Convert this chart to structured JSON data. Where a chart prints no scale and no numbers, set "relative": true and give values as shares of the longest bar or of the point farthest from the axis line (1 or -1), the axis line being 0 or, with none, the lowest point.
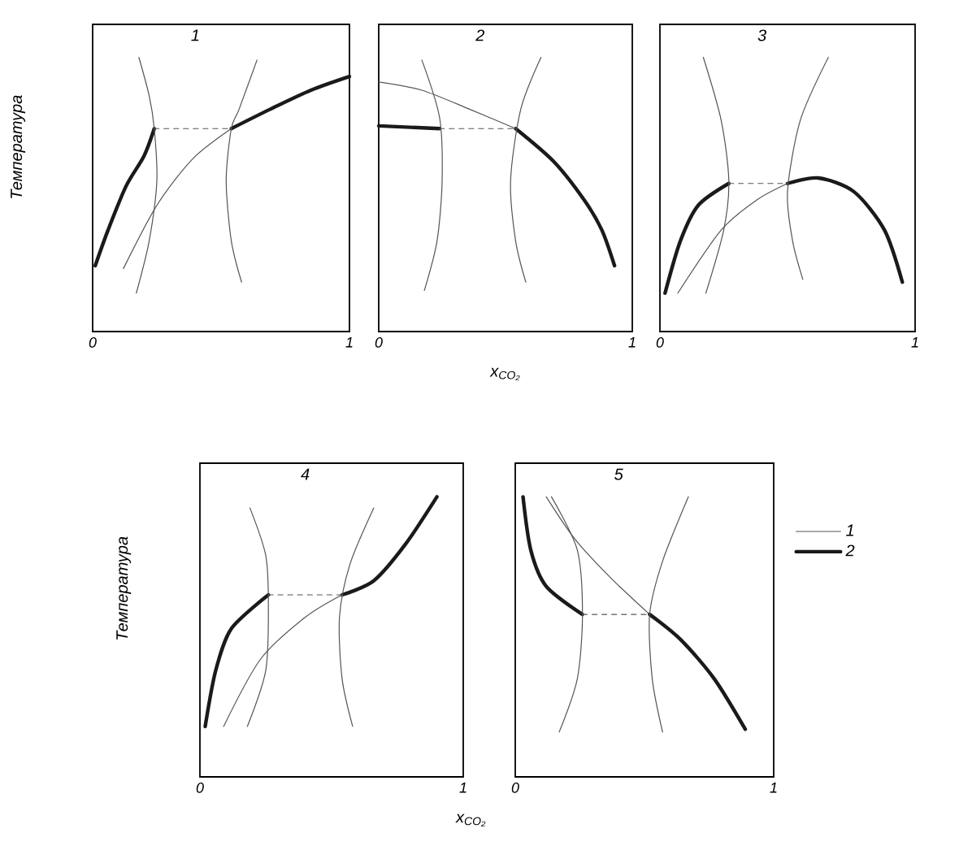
{
  "chart_data": [
    {
      "type": "line",
      "title": "1",
      "ylabel": "Температура",
      "relative": true,
      "xlim": [
        0,
        1
      ],
      "xticks": [
        0,
        1
      ],
      "marker": "none",
      "series": [
        {
          "color": "#1a1a1a",
          "x": [
            0.01,
            0.06,
            0.13,
            0.2,
            0.24
          ],
          "values": [
            0.24,
            0.37,
            0.53,
            0.64,
            0.74
          ]
        },
        {
          "color": "#1a1a1a",
          "x": [
            0.54,
            0.69,
            0.85,
            1.0
          ],
          "values": [
            0.74,
            0.81,
            0.88,
            0.93
          ]
        },
        {
          "color": "#555555",
          "x": [
            0.12,
            0.25,
            0.39,
            0.54
          ],
          "values": [
            0.23,
            0.46,
            0.63,
            0.74
          ]
        },
        {
          "color": "#555555",
          "line_style": "dashed",
          "x": [
            0.24,
            0.54
          ],
          "values": [
            0.74,
            0.74
          ]
        },
        {
          "color": "#555555",
          "x": [
            0.18,
            0.22,
            0.24,
            0.25,
            0.22,
            0.17
          ],
          "values": [
            1.0,
            0.86,
            0.74,
            0.55,
            0.33,
            0.14
          ]
        },
        {
          "color": "#555555",
          "x": [
            0.64,
            0.57,
            0.54,
            0.52,
            0.54,
            0.58
          ],
          "values": [
            0.99,
            0.81,
            0.74,
            0.55,
            0.33,
            0.18
          ]
        }
      ]
    },
    {
      "type": "line",
      "title": "2",
      "xlabel": "x$_{CO₂}$",
      "relative": true,
      "xlim": [
        0,
        1
      ],
      "xticks": [
        0,
        1
      ],
      "marker": "none",
      "series": [
        {
          "color": "#1a1a1a",
          "x": [
            0.0,
            0.24
          ],
          "values": [
            0.75,
            0.74
          ]
        },
        {
          "color": "#1a1a1a",
          "x": [
            0.54,
            0.69,
            0.81,
            0.88,
            0.93
          ],
          "values": [
            0.74,
            0.62,
            0.48,
            0.37,
            0.24
          ]
        },
        {
          "color": "#555555",
          "x": [
            0.0,
            0.17,
            0.36,
            0.54
          ],
          "values": [
            0.91,
            0.88,
            0.81,
            0.74
          ]
        },
        {
          "color": "#555555",
          "line_style": "dashed",
          "x": [
            0.24,
            0.54
          ],
          "values": [
            0.74,
            0.74
          ]
        },
        {
          "color": "#555555",
          "x": [
            0.17,
            0.24,
            0.25,
            0.23,
            0.18
          ],
          "values": [
            0.99,
            0.78,
            0.55,
            0.33,
            0.15
          ]
        },
        {
          "color": "#555555",
          "x": [
            0.64,
            0.56,
            0.52,
            0.54,
            0.58
          ],
          "values": [
            1.0,
            0.81,
            0.55,
            0.33,
            0.18
          ]
        }
      ]
    },
    {
      "type": "line",
      "title": "3",
      "relative": true,
      "xlim": [
        0,
        1
      ],
      "xticks": [
        0,
        1
      ],
      "marker": "none",
      "series": [
        {
          "color": "#1a1a1a",
          "x": [
            0.02,
            0.08,
            0.15,
            0.27
          ],
          "values": [
            0.14,
            0.33,
            0.46,
            0.54
          ]
        },
        {
          "color": "#1a1a1a",
          "x": [
            0.5,
            0.62,
            0.76,
            0.88,
            0.95
          ],
          "values": [
            0.54,
            0.56,
            0.51,
            0.37,
            0.18
          ]
        },
        {
          "color": "#555555",
          "x": [
            0.07,
            0.24,
            0.38,
            0.5
          ],
          "values": [
            0.14,
            0.37,
            0.48,
            0.54
          ]
        },
        {
          "color": "#555555",
          "line_style": "dashed",
          "x": [
            0.27,
            0.5
          ],
          "values": [
            0.54,
            0.54
          ]
        },
        {
          "color": "#555555",
          "x": [
            0.17,
            0.24,
            0.27,
            0.25,
            0.18
          ],
          "values": [
            1.0,
            0.77,
            0.55,
            0.37,
            0.14
          ]
        },
        {
          "color": "#555555",
          "x": [
            0.66,
            0.55,
            0.5,
            0.52,
            0.56
          ],
          "values": [
            1.0,
            0.77,
            0.51,
            0.33,
            0.19
          ]
        }
      ]
    },
    {
      "type": "line",
      "title": "4",
      "ylabel": "Температура",
      "xlabel": "x$_{CO₂}$",
      "relative": true,
      "xlim": [
        0,
        1
      ],
      "xticks": [
        0,
        1
      ],
      "marker": "none",
      "series": [
        {
          "color": "#1a1a1a",
          "x": [
            0.02,
            0.06,
            0.12,
            0.26
          ],
          "values": [
            0.18,
            0.38,
            0.53,
            0.65
          ]
        },
        {
          "color": "#1a1a1a",
          "x": [
            0.54,
            0.66,
            0.78,
            0.9
          ],
          "values": [
            0.65,
            0.7,
            0.83,
            1.0
          ]
        },
        {
          "color": "#555555",
          "x": [
            0.09,
            0.23,
            0.4,
            0.54
          ],
          "values": [
            0.18,
            0.42,
            0.57,
            0.65
          ]
        },
        {
          "color": "#555555",
          "line_style": "dashed",
          "x": [
            0.26,
            0.54
          ],
          "values": [
            0.65,
            0.65
          ]
        },
        {
          "color": "#555555",
          "x": [
            0.19,
            0.25,
            0.26,
            0.25,
            0.18
          ],
          "values": [
            0.96,
            0.79,
            0.61,
            0.38,
            0.18
          ]
        },
        {
          "color": "#555555",
          "x": [
            0.66,
            0.57,
            0.53,
            0.54,
            0.58
          ],
          "values": [
            0.96,
            0.76,
            0.57,
            0.35,
            0.18
          ]
        }
      ]
    },
    {
      "type": "line",
      "title": "5",
      "relative": true,
      "xlim": [
        0,
        1
      ],
      "xticks": [
        0,
        1
      ],
      "marker": "none",
      "legend": "right",
      "series": [
        {
          "name": "2",
          "color": "#1a1a1a",
          "x": [
            0.03,
            0.06,
            0.12,
            0.26
          ],
          "values": [
            1.0,
            0.81,
            0.68,
            0.58
          ]
        },
        {
          "color": "#1a1a1a",
          "x": [
            0.52,
            0.64,
            0.77,
            0.89
          ],
          "values": [
            0.58,
            0.49,
            0.35,
            0.17
          ]
        },
        {
          "name": "1",
          "color": "#555555",
          "x": [
            0.12,
            0.23,
            0.37,
            0.52
          ],
          "values": [
            1.0,
            0.85,
            0.71,
            0.58
          ]
        },
        {
          "color": "#555555",
          "line_style": "dashed",
          "x": [
            0.26,
            0.52
          ],
          "values": [
            0.58,
            0.58
          ]
        },
        {
          "color": "#555555",
          "x": [
            0.14,
            0.24,
            0.26,
            0.24,
            0.17
          ],
          "values": [
            1.0,
            0.81,
            0.58,
            0.35,
            0.16
          ]
        },
        {
          "color": "#555555",
          "x": [
            0.67,
            0.57,
            0.52,
            0.53,
            0.57
          ],
          "values": [
            1.0,
            0.77,
            0.58,
            0.35,
            0.16
          ]
        }
      ]
    }
  ]
}
